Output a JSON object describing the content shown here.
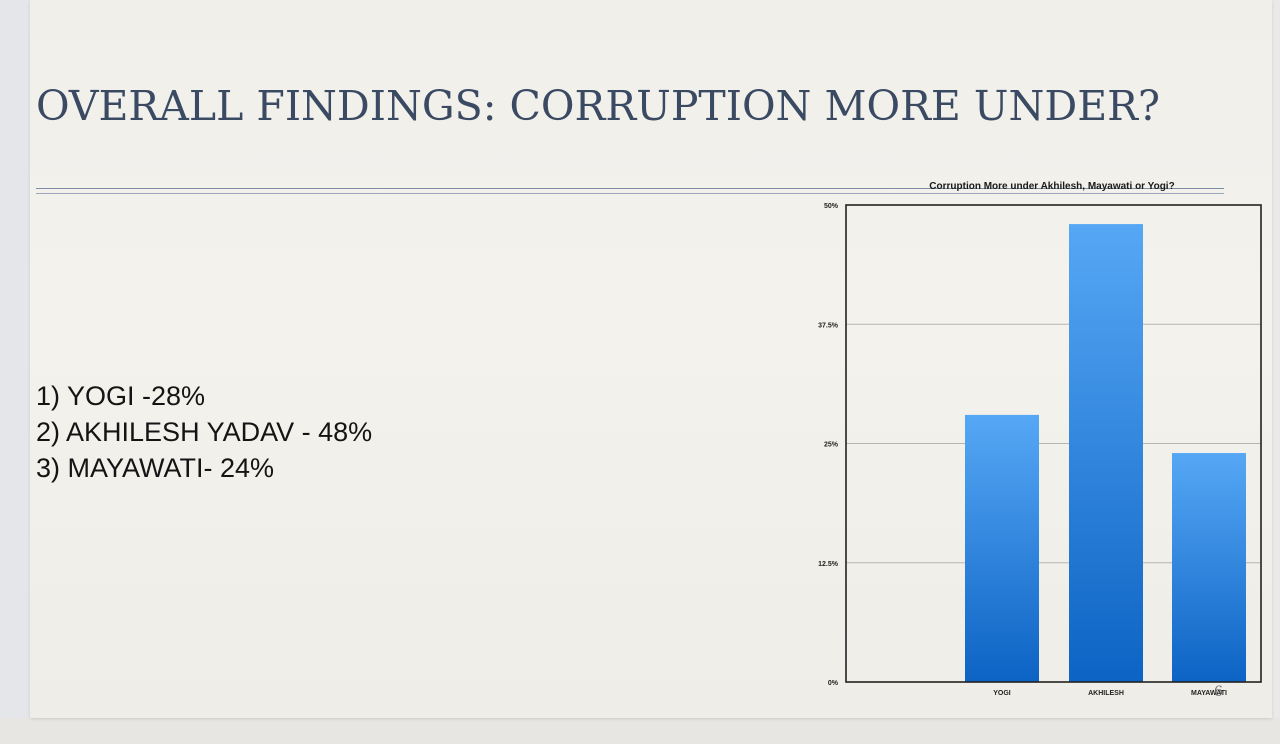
{
  "slide": {
    "title": "OVERALL FINDINGS: CORRUPTION MORE UNDER?",
    "findings": [
      "1) YOGI -28%",
      "2) AKHILESH YADAV - 48%",
      "3) MAYAWATI- 24%"
    ],
    "page_number": "6"
  },
  "colors": {
    "title": "#3b4a63",
    "bar_top": "#56a8f5",
    "bar_bottom": "#0d63c4",
    "gridline": "#b5b5b5"
  },
  "chart_data": {
    "type": "bar",
    "title": "Corruption More under Akhilesh, Mayawati or Yogi?",
    "categories": [
      "YOGI",
      "AKHILESH",
      "MAYAWATI"
    ],
    "values": [
      28,
      48,
      24
    ],
    "ylim": [
      0,
      50
    ],
    "yticks": [
      0,
      12.5,
      25,
      37.5,
      50
    ],
    "ytick_labels": [
      "0%",
      "12.5%",
      "25%",
      "37.5%",
      "50%"
    ],
    "xlabel": "",
    "ylabel": "",
    "grid": true,
    "legend": "none"
  }
}
